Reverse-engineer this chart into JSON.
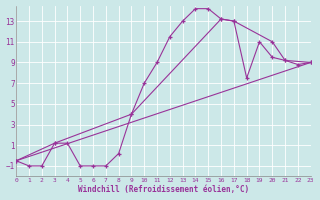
{
  "bg_color": "#cce8e8",
  "grid_color": "#aacccc",
  "line_color": "#993399",
  "xlabel": "Windchill (Refroidissement éolien,°C)",
  "xlim": [
    0,
    23
  ],
  "ylim": [
    -2,
    14.5
  ],
  "xticks": [
    0,
    1,
    2,
    3,
    4,
    5,
    6,
    7,
    8,
    9,
    10,
    11,
    12,
    13,
    14,
    15,
    16,
    17,
    18,
    19,
    20,
    21,
    22,
    23
  ],
  "yticks": [
    -1,
    1,
    3,
    5,
    7,
    9,
    11,
    13
  ],
  "curve1_x": [
    0,
    1,
    2,
    3,
    4,
    5,
    6,
    7,
    8,
    9,
    10,
    11,
    12,
    13,
    14,
    15,
    16,
    17,
    18,
    19,
    20,
    21,
    22,
    23
  ],
  "curve1_y": [
    -0.5,
    -1.0,
    -1.0,
    1.2,
    1.2,
    -1.0,
    -1.0,
    -1.0,
    0.2,
    4.0,
    7.0,
    9.0,
    11.5,
    13.0,
    14.2,
    14.2,
    13.2,
    13.0,
    7.5,
    11.0,
    9.5,
    9.2,
    8.8,
    9.0
  ],
  "curve2_x": [
    0,
    3,
    9,
    16,
    17,
    20,
    21,
    23
  ],
  "curve2_y": [
    -0.5,
    1.2,
    4.0,
    13.2,
    13.0,
    11.0,
    9.2,
    9.0
  ],
  "curve3_x": [
    0,
    23
  ],
  "curve3_y": [
    -0.5,
    9.0
  ]
}
